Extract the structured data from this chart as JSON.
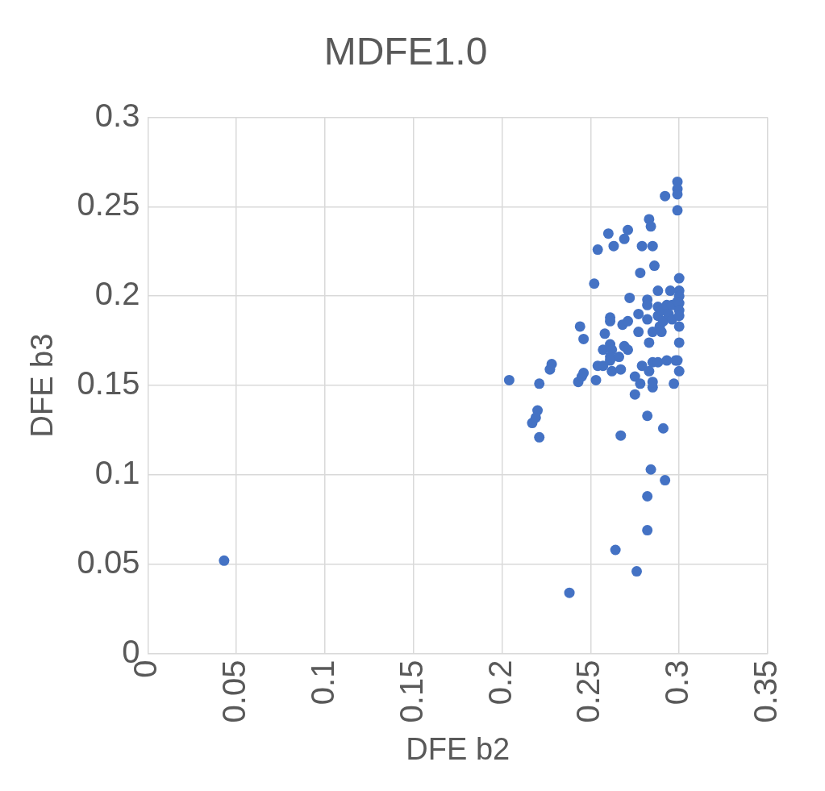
{
  "chart_data": {
    "type": "scatter",
    "title": "MDFE1.0",
    "xlabel": "DFE b2",
    "ylabel": "DFE b3",
    "x": [
      0.043,
      0.204,
      0.221,
      0.22,
      0.217,
      0.219,
      0.221,
      0.228,
      0.227,
      0.238,
      0.244,
      0.246,
      0.243,
      0.245,
      0.246,
      0.252,
      0.254,
      0.253,
      0.254,
      0.257,
      0.26,
      0.263,
      0.261,
      0.261,
      0.258,
      0.257,
      0.261,
      0.262,
      0.261,
      0.261,
      0.262,
      0.266,
      0.267,
      0.264,
      0.267,
      0.269,
      0.271,
      0.268,
      0.271,
      0.269,
      0.271,
      0.272,
      0.275,
      0.275,
      0.276,
      0.277,
      0.277,
      0.278,
      0.279,
      0.279,
      0.278,
      0.282,
      0.282,
      0.282,
      0.282,
      0.282,
      0.282,
      0.283,
      0.284,
      0.283,
      0.283,
      0.284,
      0.285,
      0.285,
      0.285,
      0.285,
      0.285,
      0.286,
      0.288,
      0.288,
      0.288,
      0.288,
      0.289,
      0.29,
      0.29,
      0.291,
      0.291,
      0.292,
      0.292,
      0.293,
      0.293,
      0.294,
      0.295,
      0.296,
      0.296,
      0.297,
      0.298,
      0.299,
      0.299,
      0.299,
      0.299,
      0.299,
      0.3,
      0.3,
      0.3,
      0.3,
      0.3,
      0.3,
      0.3,
      0.3,
      0.299,
      0.3
    ],
    "series": [
      {
        "color": "#4472c4",
        "values": [
          0.052,
          0.153,
          0.121,
          0.136,
          0.129,
          0.132,
          0.151,
          0.162,
          0.159,
          0.034,
          0.183,
          0.176,
          0.152,
          0.155,
          0.157,
          0.207,
          0.226,
          0.153,
          0.161,
          0.161,
          0.235,
          0.228,
          0.188,
          0.186,
          0.179,
          0.17,
          0.173,
          0.17,
          0.166,
          0.164,
          0.158,
          0.166,
          0.159,
          0.058,
          0.122,
          0.232,
          0.237,
          0.184,
          0.186,
          0.172,
          0.17,
          0.199,
          0.155,
          0.145,
          0.046,
          0.19,
          0.18,
          0.213,
          0.228,
          0.161,
          0.151,
          0.198,
          0.195,
          0.187,
          0.133,
          0.088,
          0.069,
          0.243,
          0.239,
          0.174,
          0.158,
          0.103,
          0.228,
          0.18,
          0.163,
          0.149,
          0.152,
          0.217,
          0.194,
          0.189,
          0.203,
          0.163,
          0.183,
          0.18,
          0.192,
          0.186,
          0.126,
          0.097,
          0.256,
          0.195,
          0.164,
          0.19,
          0.203,
          0.187,
          0.195,
          0.151,
          0.164,
          0.197,
          0.248,
          0.264,
          0.26,
          0.257,
          0.21,
          0.203,
          0.2,
          0.196,
          0.192,
          0.189,
          0.183,
          0.174,
          0.164,
          0.158
        ]
      }
    ],
    "xlim": [
      0,
      0.35
    ],
    "xticks": [
      0,
      0.05,
      0.1,
      0.15,
      0.2,
      0.25,
      0.3,
      0.35
    ],
    "ylim": [
      0,
      0.3
    ],
    "yticks": [
      0,
      0.05,
      0.1,
      0.15,
      0.2,
      0.25,
      0.3
    ],
    "grid": true,
    "legend": false,
    "marker": "circle"
  }
}
